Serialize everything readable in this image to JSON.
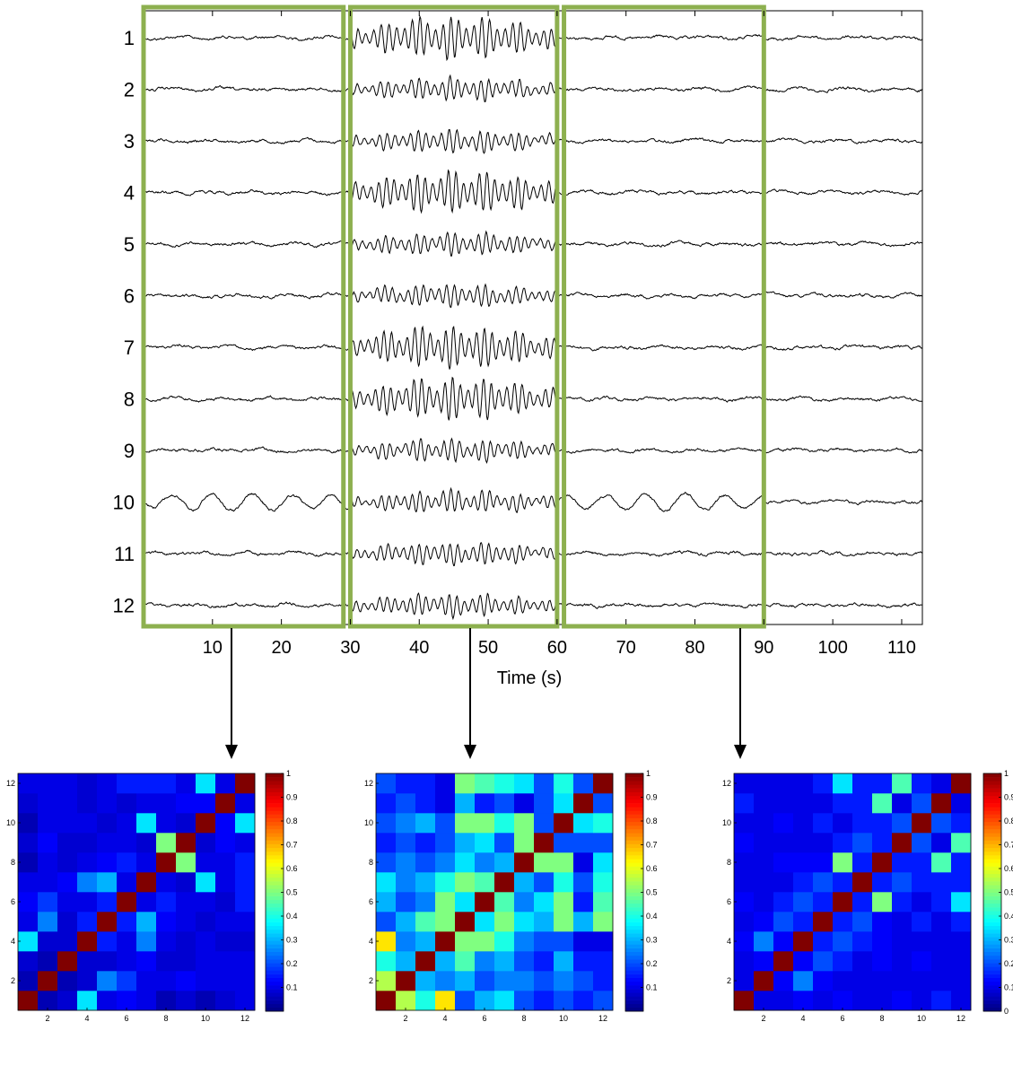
{
  "chart_data": [
    {
      "type": "line",
      "xlabel": "Time (s)",
      "ylabel": "",
      "title": "",
      "xlim": [
        0,
        113
      ],
      "x_ticks": [
        10,
        20,
        30,
        40,
        50,
        60,
        70,
        80,
        90,
        100,
        110
      ],
      "channels": [
        "1",
        "2",
        "3",
        "4",
        "5",
        "6",
        "7",
        "8",
        "9",
        "10",
        "11",
        "12"
      ],
      "windows": [
        {
          "start": 0,
          "end": 29
        },
        {
          "start": 30,
          "end": 60
        },
        {
          "start": 61,
          "end": 90
        }
      ],
      "seizure_interval": [
        30,
        60
      ],
      "window_color": "#8db04f",
      "trace_color": "#000000",
      "note_series": "12 EEG traces; large-amplitude oscillatory activity between ~30 s and ~60 s"
    },
    {
      "type": "heatmap",
      "window_index": 0,
      "x_ticks": [
        2,
        4,
        6,
        8,
        10,
        12
      ],
      "y_ticks": [
        2,
        4,
        6,
        8,
        10,
        12
      ],
      "colorbar_ticks": [
        "0.1",
        "0.2",
        "0.3",
        "0.4",
        "0.5",
        "0.6",
        "0.7",
        "0.8",
        "0.9",
        "1"
      ],
      "clim": [
        0,
        1
      ],
      "colormap": "jet",
      "matrix": [
        [
          1.0,
          0.05,
          0.08,
          0.35,
          0.1,
          0.12,
          0.1,
          0.05,
          0.08,
          0.05,
          0.08,
          0.1
        ],
        [
          0.05,
          1.0,
          0.05,
          0.08,
          0.25,
          0.18,
          0.1,
          0.1,
          0.12,
          0.1,
          0.1,
          0.1
        ],
        [
          0.08,
          0.05,
          1.0,
          0.08,
          0.08,
          0.1,
          0.12,
          0.08,
          0.08,
          0.1,
          0.1,
          0.1
        ],
        [
          0.35,
          0.08,
          0.08,
          1.0,
          0.15,
          0.1,
          0.25,
          0.1,
          0.08,
          0.1,
          0.08,
          0.08
        ],
        [
          0.1,
          0.25,
          0.08,
          0.15,
          1.0,
          0.15,
          0.3,
          0.12,
          0.1,
          0.08,
          0.1,
          0.1
        ],
        [
          0.12,
          0.18,
          0.1,
          0.1,
          0.15,
          1.0,
          0.1,
          0.15,
          0.1,
          0.1,
          0.08,
          0.15
        ],
        [
          0.1,
          0.1,
          0.12,
          0.25,
          0.3,
          0.1,
          1.0,
          0.1,
          0.08,
          0.35,
          0.1,
          0.15
        ],
        [
          0.05,
          0.1,
          0.08,
          0.1,
          0.12,
          0.15,
          0.1,
          1.0,
          0.5,
          0.1,
          0.1,
          0.15
        ],
        [
          0.08,
          0.12,
          0.08,
          0.08,
          0.1,
          0.1,
          0.08,
          0.5,
          1.0,
          0.08,
          0.12,
          0.1
        ],
        [
          0.05,
          0.1,
          0.1,
          0.1,
          0.08,
          0.1,
          0.35,
          0.1,
          0.08,
          1.0,
          0.12,
          0.35
        ],
        [
          0.08,
          0.1,
          0.1,
          0.08,
          0.1,
          0.08,
          0.1,
          0.1,
          0.12,
          0.12,
          1.0,
          0.1
        ],
        [
          0.1,
          0.1,
          0.1,
          0.08,
          0.1,
          0.15,
          0.15,
          0.15,
          0.1,
          0.35,
          0.1,
          1.0
        ]
      ]
    },
    {
      "type": "heatmap",
      "window_index": 1,
      "x_ticks": [
        2,
        4,
        6,
        8,
        10,
        12
      ],
      "y_ticks": [
        2,
        4,
        6,
        8,
        10,
        12
      ],
      "colorbar_ticks": [
        "0.1",
        "0.2",
        "0.3",
        "0.4",
        "0.5",
        "0.6",
        "0.7",
        "0.8",
        "0.9",
        "1"
      ],
      "clim": [
        0,
        1
      ],
      "colormap": "jet",
      "matrix": [
        [
          1.0,
          0.55,
          0.4,
          0.65,
          0.2,
          0.3,
          0.35,
          0.2,
          0.15,
          0.2,
          0.15,
          0.2
        ],
        [
          0.55,
          1.0,
          0.3,
          0.25,
          0.3,
          0.2,
          0.25,
          0.25,
          0.2,
          0.25,
          0.2,
          0.15
        ],
        [
          0.4,
          0.3,
          1.0,
          0.3,
          0.45,
          0.25,
          0.3,
          0.2,
          0.15,
          0.3,
          0.15,
          0.15
        ],
        [
          0.65,
          0.25,
          0.3,
          1.0,
          0.5,
          0.5,
          0.4,
          0.25,
          0.2,
          0.2,
          0.1,
          0.1
        ],
        [
          0.2,
          0.3,
          0.45,
          0.5,
          1.0,
          0.35,
          0.5,
          0.35,
          0.3,
          0.5,
          0.3,
          0.5
        ],
        [
          0.3,
          0.2,
          0.25,
          0.5,
          0.35,
          1.0,
          0.45,
          0.25,
          0.35,
          0.5,
          0.15,
          0.45
        ],
        [
          0.35,
          0.25,
          0.3,
          0.4,
          0.5,
          0.45,
          1.0,
          0.3,
          0.2,
          0.4,
          0.2,
          0.4
        ],
        [
          0.2,
          0.25,
          0.2,
          0.25,
          0.35,
          0.25,
          0.3,
          1.0,
          0.5,
          0.5,
          0.1,
          0.35
        ],
        [
          0.15,
          0.2,
          0.15,
          0.2,
          0.3,
          0.35,
          0.2,
          0.5,
          1.0,
          0.2,
          0.2,
          0.2
        ],
        [
          0.2,
          0.25,
          0.3,
          0.2,
          0.5,
          0.5,
          0.4,
          0.5,
          0.2,
          1.0,
          0.35,
          0.4
        ],
        [
          0.15,
          0.2,
          0.15,
          0.1,
          0.3,
          0.15,
          0.2,
          0.1,
          0.2,
          0.35,
          1.0,
          0.2
        ],
        [
          0.2,
          0.15,
          0.15,
          0.1,
          0.5,
          0.45,
          0.4,
          0.35,
          0.2,
          0.4,
          0.2,
          1.0
        ]
      ]
    },
    {
      "type": "heatmap",
      "window_index": 2,
      "x_ticks": [
        2,
        4,
        6,
        8,
        10,
        12
      ],
      "y_ticks": [
        2,
        4,
        6,
        8,
        10,
        12
      ],
      "colorbar_ticks": [
        "0",
        "0.1",
        "0.2",
        "0.3",
        "0.4",
        "0.5",
        "0.6",
        "0.7",
        "0.8",
        "0.9",
        "1"
      ],
      "clim": [
        0,
        1
      ],
      "colormap": "jet",
      "matrix": [
        [
          1.0,
          0.1,
          0.1,
          0.12,
          0.1,
          0.12,
          0.1,
          0.1,
          0.12,
          0.1,
          0.15,
          0.1
        ],
        [
          0.1,
          1.0,
          0.12,
          0.25,
          0.12,
          0.1,
          0.1,
          0.1,
          0.1,
          0.1,
          0.1,
          0.1
        ],
        [
          0.1,
          0.12,
          1.0,
          0.12,
          0.2,
          0.15,
          0.1,
          0.12,
          0.1,
          0.12,
          0.1,
          0.1
        ],
        [
          0.12,
          0.25,
          0.12,
          1.0,
          0.15,
          0.2,
          0.15,
          0.12,
          0.1,
          0.1,
          0.1,
          0.1
        ],
        [
          0.1,
          0.12,
          0.2,
          0.15,
          1.0,
          0.15,
          0.2,
          0.12,
          0.1,
          0.15,
          0.1,
          0.15
        ],
        [
          0.12,
          0.1,
          0.15,
          0.2,
          0.15,
          1.0,
          0.15,
          0.5,
          0.15,
          0.1,
          0.15,
          0.35
        ],
        [
          0.1,
          0.1,
          0.1,
          0.15,
          0.2,
          0.15,
          1.0,
          0.15,
          0.2,
          0.15,
          0.15,
          0.15
        ],
        [
          0.1,
          0.1,
          0.12,
          0.12,
          0.12,
          0.5,
          0.15,
          1.0,
          0.15,
          0.15,
          0.45,
          0.15
        ],
        [
          0.12,
          0.1,
          0.1,
          0.1,
          0.1,
          0.15,
          0.2,
          0.15,
          1.0,
          0.2,
          0.1,
          0.45
        ],
        [
          0.1,
          0.1,
          0.12,
          0.1,
          0.15,
          0.1,
          0.15,
          0.15,
          0.2,
          1.0,
          0.2,
          0.15
        ],
        [
          0.15,
          0.1,
          0.1,
          0.1,
          0.1,
          0.15,
          0.15,
          0.45,
          0.1,
          0.2,
          1.0,
          0.1
        ],
        [
          0.1,
          0.1,
          0.1,
          0.1,
          0.15,
          0.35,
          0.15,
          0.15,
          0.45,
          0.15,
          0.1,
          1.0
        ]
      ]
    }
  ]
}
